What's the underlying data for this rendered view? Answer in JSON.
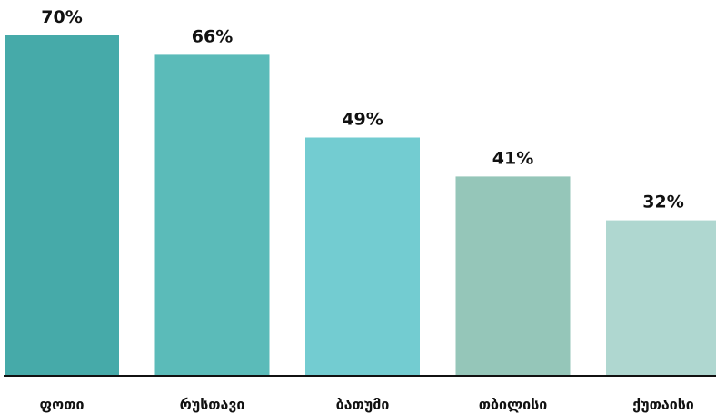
{
  "chart_data": {
    "type": "bar",
    "categories": [
      "ფოთი",
      "რუსთავი",
      "ბათუმი",
      "თბილისი",
      "ქუთაისი"
    ],
    "values": [
      70,
      66,
      49,
      41,
      32
    ],
    "value_labels": [
      "70%",
      "66%",
      "49%",
      "41%",
      "32%"
    ],
    "colors": [
      "#46aaa9",
      "#5bbbb9",
      "#73ccd1",
      "#95c6b9",
      "#afd7d0"
    ],
    "ylim": [
      0,
      70
    ],
    "grid": false,
    "legend": "none",
    "baseline_color": "#111111"
  }
}
